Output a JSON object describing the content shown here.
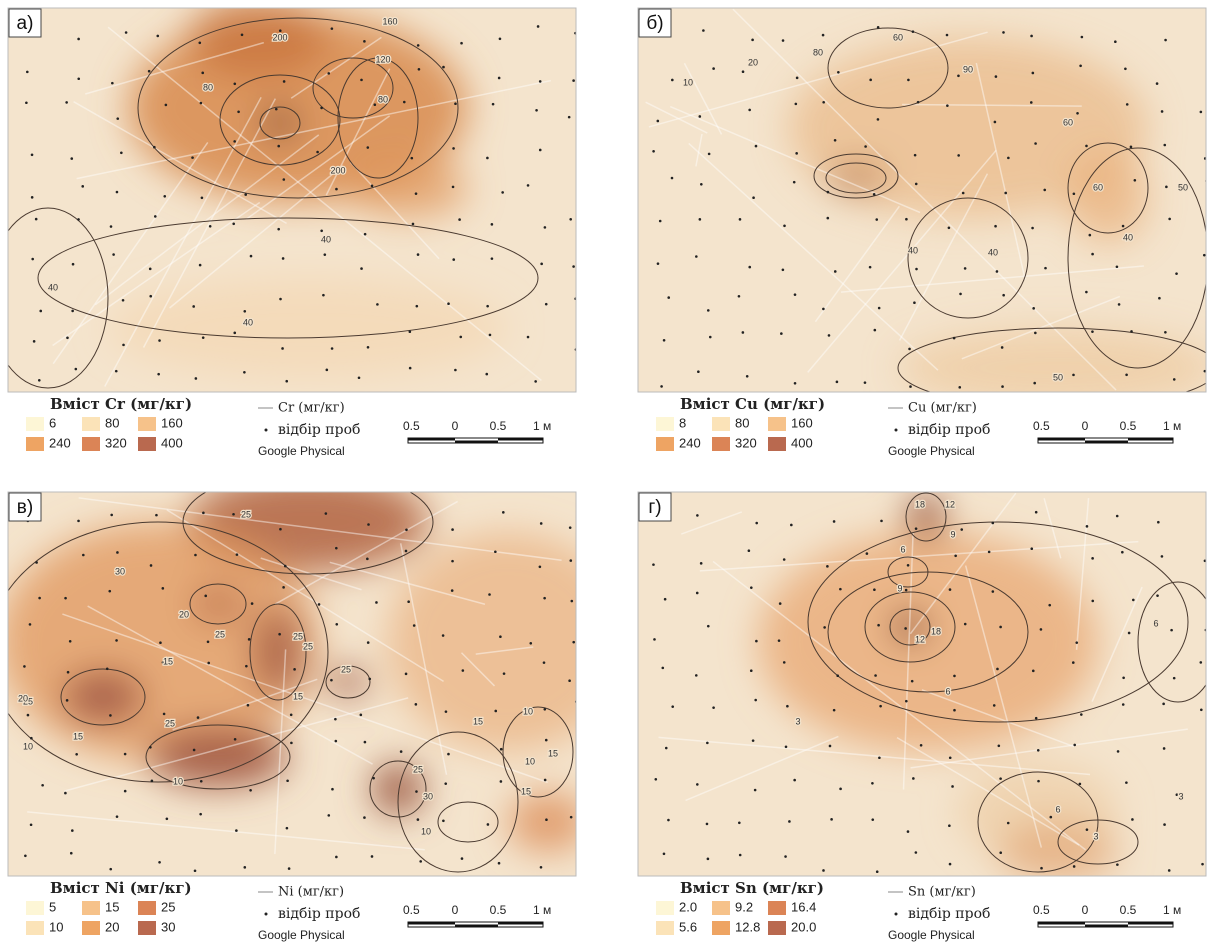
{
  "panels": [
    {
      "label": "а)",
      "legend": {
        "title": "Вміст Cr (мг/кг)",
        "classes": [
          "6",
          "80",
          "160",
          "240",
          "320",
          "400"
        ],
        "colors": [
          "#fdf6d6",
          "#fbe3b8",
          "#f6c28a",
          "#eea463",
          "#db8456",
          "#b9694f"
        ],
        "line": "Cr (мг/кг)",
        "points": "відбір проб",
        "basemap": "Google Physical"
      },
      "scale": [
        "0.5",
        "0",
        "0.5",
        "1 м"
      ],
      "contour_labels": [
        "200",
        "160",
        "120",
        "80",
        "80",
        "200",
        "40",
        "40",
        "40"
      ]
    },
    {
      "label": "б)",
      "legend": {
        "title": "Вміст Cu (мг/кг)",
        "classes": [
          "8",
          "80",
          "160",
          "240",
          "320",
          "400"
        ],
        "colors": [
          "#fdf6d6",
          "#fbe3b8",
          "#f6c28a",
          "#eea463",
          "#db8456",
          "#b9694f"
        ],
        "line": "Cu (мг/кг)",
        "points": "відбір проб",
        "basemap": "Google Physical"
      },
      "scale": [
        "0.5",
        "0",
        "0.5",
        "1 м"
      ],
      "contour_labels": [
        "10",
        "20",
        "80",
        "60",
        "90",
        "60",
        "60",
        "50",
        "40",
        "40",
        "40",
        "50"
      ]
    },
    {
      "label": "в)",
      "legend": {
        "title": "Вміст Ni (мг/кг)",
        "classes": [
          "5",
          "15",
          "25",
          "10",
          "20",
          "30"
        ],
        "colors": [
          "#fdf6d6",
          "#f6c28a",
          "#db8456",
          "#fbe3b8",
          "#eea463",
          "#b9694f"
        ],
        "line": "Ni (мг/кг)",
        "points": "відбір проб",
        "basemap": "Google Physical"
      },
      "scale": [
        "0.5",
        "0",
        "0.5",
        "1 м"
      ],
      "contour_labels": [
        "30",
        "25",
        "20",
        "25",
        "25",
        "25",
        "15",
        "15",
        "25",
        "25",
        "20",
        "10",
        "15",
        "25",
        "10",
        "25",
        "30",
        "10",
        "15",
        "15",
        "10",
        "10",
        "15"
      ]
    },
    {
      "label": "г)",
      "legend": {
        "title": "Вміст Sn (мг/кг)",
        "classes": [
          "2.0",
          "9.2",
          "16.4",
          "5.6",
          "12.8",
          "20.0"
        ],
        "colors": [
          "#fdf6d6",
          "#f6c28a",
          "#db8456",
          "#fbe3b8",
          "#eea463",
          "#b9694f"
        ],
        "line": "Sn (мг/кг)",
        "points": "відбір проб",
        "basemap": "Google Physical"
      },
      "scale": [
        "0.5",
        "0",
        "0.5",
        "1 м"
      ],
      "contour_labels": [
        "18",
        "12",
        "9",
        "6",
        "9",
        "18",
        "12",
        "6",
        "6",
        "3",
        "6",
        "3",
        "3"
      ]
    }
  ]
}
